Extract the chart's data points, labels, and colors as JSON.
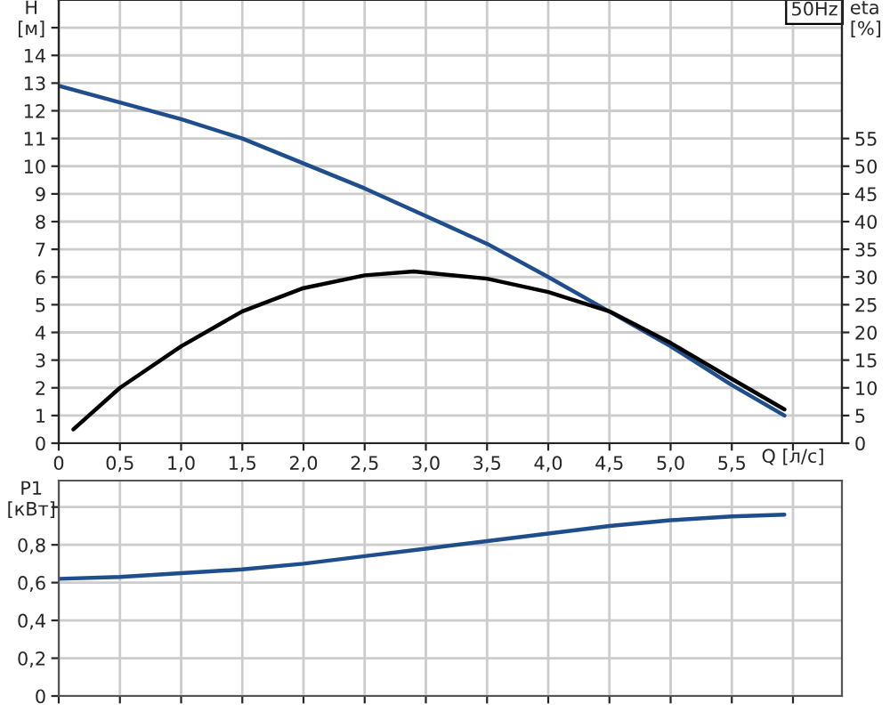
{
  "chart_data": [
    {
      "type": "line",
      "ylabel": "H\n[м]",
      "y2label": "eta\n[%]",
      "xlabel": "Q [л/с]",
      "annotations": [
        "50Hz"
      ],
      "grid": true,
      "legend": false,
      "xlim": [
        0,
        6.4
      ],
      "xticks": [
        0,
        {
          "value": 0.5,
          "label": "0,5"
        },
        {
          "value": 1,
          "label": "1,0"
        },
        {
          "value": 1.5,
          "label": "1,5"
        },
        {
          "value": 2,
          "label": "2,0"
        },
        {
          "value": 2.5,
          "label": "2,5"
        },
        {
          "value": 3,
          "label": "3,0"
        },
        {
          "value": 3.5,
          "label": "3,5"
        },
        {
          "value": 4,
          "label": "4,0"
        },
        {
          "value": 4.5,
          "label": "4,5"
        },
        {
          "value": 5,
          "label": "5,0"
        },
        {
          "value": 5.5,
          "label": "5,5"
        },
        {
          "value": 6,
          "label": null
        }
      ],
      "ylim": [
        0,
        16
      ],
      "yticks": [
        0,
        1,
        2,
        3,
        4,
        5,
        6,
        7,
        8,
        9,
        10,
        11,
        12,
        13,
        14,
        {
          "value": 15,
          "label": null
        }
      ],
      "y2lim": [
        0,
        80
      ],
      "y2ticks": [
        0,
        5,
        10,
        15,
        20,
        25,
        30,
        35,
        40,
        45,
        50,
        55
      ],
      "series": [
        {
          "color": "#1f4e8c",
          "x": [
            0,
            0.5,
            1,
            1.5,
            2,
            2.5,
            3,
            3.5,
            4,
            4.5,
            5,
            5.5,
            5.93
          ],
          "values": [
            12.9,
            12.3,
            11.7,
            11.0,
            10.1,
            9.2,
            8.2,
            7.2,
            6.0,
            4.75,
            3.5,
            2.1,
            1.0
          ]
        },
        {
          "color": "#000000",
          "axis": "y2",
          "x": [
            0.12,
            0.5,
            1,
            1.5,
            2,
            2.5,
            2.9,
            3.5,
            4,
            4.5,
            5,
            5.5,
            5.93
          ],
          "values": [
            2.5,
            10,
            17.5,
            23.8,
            28,
            30.3,
            31,
            29.7,
            27.3,
            23.8,
            18.1,
            11.6,
            6.1
          ]
        }
      ]
    },
    {
      "type": "line",
      "ylabel": "P1\n[кВт]",
      "grid": true,
      "legend": false,
      "tick_labels": "y",
      "xlim": [
        0,
        6.4
      ],
      "xticks": [
        0,
        0.5,
        1,
        1.5,
        2,
        2.5,
        3,
        3.5,
        4,
        4.5,
        5,
        5.5,
        6
      ],
      "ylim": [
        0,
        1.14
      ],
      "yticks": [
        0,
        {
          "value": 0.2,
          "label": "0,2"
        },
        {
          "value": 0.4,
          "label": "0,4"
        },
        {
          "value": 0.6,
          "label": "0,6"
        },
        {
          "value": 0.8,
          "label": "0,8"
        },
        {
          "value": 1.0,
          "label": null
        }
      ],
      "series": [
        {
          "color": "#1f4e8c",
          "x": [
            0,
            0.5,
            1,
            1.5,
            2,
            2.5,
            3,
            3.5,
            4,
            4.5,
            5,
            5.5,
            5.93
          ],
          "values": [
            0.62,
            0.63,
            0.65,
            0.67,
            0.7,
            0.74,
            0.78,
            0.82,
            0.86,
            0.9,
            0.93,
            0.95,
            0.96
          ]
        }
      ]
    }
  ]
}
